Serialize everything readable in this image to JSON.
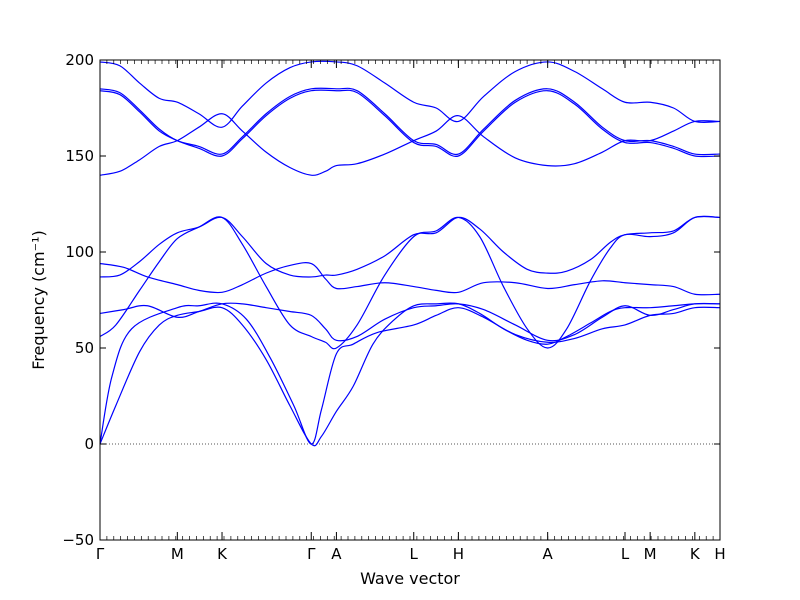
{
  "chart_data": {
    "type": "line",
    "xlabel": "Wave vector",
    "ylabel": "Frequency (cm⁻¹)",
    "ylim": [
      -50,
      200
    ],
    "yticks": [
      -50,
      0,
      50,
      100,
      150,
      200
    ],
    "grid": false,
    "line_color": "#0000ff",
    "zero_line": {
      "y": 0,
      "style": "dotted",
      "color": "#555555"
    },
    "kpoints": [
      {
        "label": "Γ",
        "x": 0.0
      },
      {
        "label": "M",
        "x": 0.1955
      },
      {
        "label": "K",
        "x": 0.3085
      },
      {
        "label": "Γ",
        "x": 0.5341
      },
      {
        "label": "A",
        "x": 0.5977
      },
      {
        "label": "L",
        "x": 0.7932
      },
      {
        "label": "H",
        "x": 0.9061
      },
      {
        "label": "A",
        "x": 1.1318
      },
      {
        "label": "L",
        "x": 1.3273
      },
      {
        "label": "M",
        "x": 1.3909
      },
      {
        "label": "K",
        "x": 1.5039
      },
      {
        "label": "H",
        "x": 1.5675
      }
    ],
    "xlim": [
      0.0,
      1.5675
    ],
    "series": [
      {
        "points": [
          [
            0,
            0
          ],
          [
            0.04,
            20
          ],
          [
            0.1,
            48
          ],
          [
            0.15,
            62
          ],
          [
            0.1955,
            67
          ],
          [
            0.25,
            69
          ],
          [
            0.3085,
            71
          ],
          [
            0.36,
            62
          ],
          [
            0.42,
            44
          ],
          [
            0.48,
            20
          ],
          [
            0.5341,
            0
          ],
          [
            0.56,
            4
          ],
          [
            0.5977,
            17
          ],
          [
            0.64,
            30
          ],
          [
            0.69,
            52
          ],
          [
            0.74,
            64
          ],
          [
            0.7932,
            72
          ],
          [
            0.85,
            73
          ],
          [
            0.9061,
            73
          ],
          [
            0.96,
            68
          ],
          [
            1.02,
            60
          ],
          [
            1.08,
            54
          ],
          [
            1.1318,
            52
          ],
          [
            1.18,
            56
          ],
          [
            1.24,
            63
          ],
          [
            1.29,
            69
          ],
          [
            1.3273,
            71
          ],
          [
            1.3909,
            71
          ],
          [
            1.45,
            72
          ],
          [
            1.5039,
            73
          ],
          [
            1.5675,
            73
          ]
        ]
      },
      {
        "points": [
          [
            0,
            0
          ],
          [
            0.03,
            35
          ],
          [
            0.08,
            60
          ],
          [
            0.1955,
            71
          ],
          [
            0.25,
            72
          ],
          [
            0.3085,
            73
          ],
          [
            0.37,
            65
          ],
          [
            0.43,
            45
          ],
          [
            0.49,
            20
          ],
          [
            0.5341,
            0
          ],
          [
            0.56,
            18
          ],
          [
            0.5977,
            47
          ],
          [
            0.64,
            52
          ],
          [
            0.7,
            58
          ],
          [
            0.7932,
            62
          ],
          [
            0.85,
            67
          ],
          [
            0.9061,
            71
          ],
          [
            0.97,
            66
          ],
          [
            1.05,
            57
          ],
          [
            1.1318,
            53
          ],
          [
            1.2,
            55
          ],
          [
            1.27,
            60
          ],
          [
            1.3273,
            62
          ],
          [
            1.3909,
            67
          ],
          [
            1.45,
            68
          ],
          [
            1.5039,
            71
          ],
          [
            1.5675,
            71
          ]
        ]
      },
      {
        "points": [
          [
            0,
            56
          ],
          [
            0.04,
            62
          ],
          [
            0.1,
            80
          ],
          [
            0.15,
            95
          ],
          [
            0.1955,
            107
          ],
          [
            0.25,
            113
          ],
          [
            0.3085,
            118
          ],
          [
            0.36,
            104
          ],
          [
            0.42,
            82
          ],
          [
            0.48,
            62
          ],
          [
            0.5341,
            56
          ],
          [
            0.57,
            53
          ],
          [
            0.5977,
            50
          ],
          [
            0.65,
            62
          ],
          [
            0.72,
            88
          ],
          [
            0.7932,
            108
          ],
          [
            0.85,
            111
          ],
          [
            0.9061,
            118
          ],
          [
            0.96,
            108
          ],
          [
            1.02,
            82
          ],
          [
            1.08,
            60
          ],
          [
            1.1318,
            50
          ],
          [
            1.18,
            60
          ],
          [
            1.24,
            85
          ],
          [
            1.29,
            102
          ],
          [
            1.3273,
            109
          ],
          [
            1.3909,
            108
          ],
          [
            1.45,
            110
          ],
          [
            1.5039,
            118
          ],
          [
            1.5675,
            118
          ]
        ]
      },
      {
        "points": [
          [
            0,
            68
          ],
          [
            0.06,
            70
          ],
          [
            0.12,
            72
          ],
          [
            0.1955,
            66
          ],
          [
            0.25,
            69
          ],
          [
            0.3085,
            73
          ],
          [
            0.36,
            73
          ],
          [
            0.42,
            71
          ],
          [
            0.48,
            69
          ],
          [
            0.5341,
            67
          ],
          [
            0.57,
            60
          ],
          [
            0.5977,
            54
          ],
          [
            0.65,
            56
          ],
          [
            0.72,
            65
          ],
          [
            0.7932,
            71
          ],
          [
            0.85,
            72
          ],
          [
            0.9061,
            73
          ],
          [
            0.97,
            70
          ],
          [
            1.05,
            62
          ],
          [
            1.1318,
            54
          ],
          [
            1.2,
            57
          ],
          [
            1.27,
            66
          ],
          [
            1.3273,
            72
          ],
          [
            1.3909,
            67
          ],
          [
            1.45,
            70
          ],
          [
            1.5039,
            73
          ],
          [
            1.5675,
            73
          ]
        ]
      },
      {
        "points": [
          [
            0,
            87
          ],
          [
            0.05,
            88
          ],
          [
            0.1,
            95
          ],
          [
            0.15,
            104
          ],
          [
            0.1955,
            110
          ],
          [
            0.25,
            113
          ],
          [
            0.3085,
            118
          ],
          [
            0.36,
            108
          ],
          [
            0.42,
            94
          ],
          [
            0.48,
            88
          ],
          [
            0.5341,
            87
          ],
          [
            0.57,
            88
          ],
          [
            0.5977,
            88
          ],
          [
            0.65,
            91
          ],
          [
            0.72,
            98
          ],
          [
            0.7932,
            109
          ],
          [
            0.85,
            110
          ],
          [
            0.9061,
            118
          ],
          [
            0.96,
            112
          ],
          [
            1.02,
            100
          ],
          [
            1.08,
            91
          ],
          [
            1.1318,
            89
          ],
          [
            1.18,
            90
          ],
          [
            1.24,
            96
          ],
          [
            1.29,
            105
          ],
          [
            1.3273,
            109
          ],
          [
            1.3909,
            110
          ],
          [
            1.45,
            111
          ],
          [
            1.5039,
            118
          ],
          [
            1.5675,
            118
          ]
        ]
      },
      {
        "points": [
          [
            0,
            94
          ],
          [
            0.06,
            92
          ],
          [
            0.12,
            87
          ],
          [
            0.1955,
            83
          ],
          [
            0.25,
            80
          ],
          [
            0.3085,
            79
          ],
          [
            0.36,
            83
          ],
          [
            0.42,
            89
          ],
          [
            0.48,
            93
          ],
          [
            0.5341,
            94
          ],
          [
            0.57,
            86
          ],
          [
            0.5977,
            81
          ],
          [
            0.65,
            82
          ],
          [
            0.72,
            84
          ],
          [
            0.7932,
            82
          ],
          [
            0.85,
            80
          ],
          [
            0.9061,
            79
          ],
          [
            0.97,
            84
          ],
          [
            1.05,
            84
          ],
          [
            1.1318,
            81
          ],
          [
            1.2,
            83
          ],
          [
            1.27,
            85
          ],
          [
            1.3273,
            84
          ],
          [
            1.3909,
            83
          ],
          [
            1.45,
            82
          ],
          [
            1.5039,
            78
          ],
          [
            1.5675,
            78
          ]
        ]
      },
      {
        "points": [
          [
            0,
            140
          ],
          [
            0.05,
            142
          ],
          [
            0.1,
            148
          ],
          [
            0.15,
            155
          ],
          [
            0.1955,
            158
          ],
          [
            0.25,
            165
          ],
          [
            0.3085,
            172
          ],
          [
            0.36,
            163
          ],
          [
            0.42,
            152
          ],
          [
            0.48,
            144
          ],
          [
            0.5341,
            140
          ],
          [
            0.57,
            142
          ],
          [
            0.5977,
            145
          ],
          [
            0.65,
            146
          ],
          [
            0.72,
            151
          ],
          [
            0.7932,
            158
          ],
          [
            0.85,
            163
          ],
          [
            0.9061,
            171
          ],
          [
            0.97,
            160
          ],
          [
            1.05,
            149
          ],
          [
            1.1318,
            145
          ],
          [
            1.2,
            146
          ],
          [
            1.27,
            152
          ],
          [
            1.3273,
            158
          ],
          [
            1.3909,
            158
          ],
          [
            1.45,
            163
          ],
          [
            1.5039,
            168
          ],
          [
            1.5675,
            168
          ]
        ]
      },
      {
        "points": [
          [
            0,
            185
          ],
          [
            0.05,
            183
          ],
          [
            0.1,
            174
          ],
          [
            0.15,
            164
          ],
          [
            0.1955,
            158
          ],
          [
            0.25,
            155
          ],
          [
            0.3085,
            151
          ],
          [
            0.36,
            160
          ],
          [
            0.42,
            172
          ],
          [
            0.48,
            181
          ],
          [
            0.5341,
            185
          ],
          [
            0.5977,
            185
          ],
          [
            0.65,
            184
          ],
          [
            0.72,
            172
          ],
          [
            0.7932,
            158
          ],
          [
            0.85,
            156
          ],
          [
            0.9061,
            151
          ],
          [
            0.97,
            164
          ],
          [
            1.05,
            179
          ],
          [
            1.1318,
            185
          ],
          [
            1.2,
            178
          ],
          [
            1.27,
            165
          ],
          [
            1.3273,
            158
          ],
          [
            1.3909,
            158
          ],
          [
            1.45,
            155
          ],
          [
            1.5039,
            151
          ],
          [
            1.5675,
            151
          ]
        ]
      },
      {
        "points": [
          [
            0,
            184
          ],
          [
            0.05,
            182
          ],
          [
            0.1,
            173
          ],
          [
            0.15,
            163
          ],
          [
            0.1955,
            158
          ],
          [
            0.25,
            154
          ],
          [
            0.3085,
            150
          ],
          [
            0.36,
            159
          ],
          [
            0.42,
            171
          ],
          [
            0.48,
            180
          ],
          [
            0.5341,
            184
          ],
          [
            0.5977,
            184
          ],
          [
            0.65,
            183
          ],
          [
            0.72,
            171
          ],
          [
            0.7932,
            157
          ],
          [
            0.85,
            155
          ],
          [
            0.9061,
            150
          ],
          [
            0.97,
            163
          ],
          [
            1.05,
            178
          ],
          [
            1.1318,
            184
          ],
          [
            1.2,
            177
          ],
          [
            1.27,
            164
          ],
          [
            1.3273,
            157
          ],
          [
            1.3909,
            157
          ],
          [
            1.45,
            154
          ],
          [
            1.5039,
            150
          ],
          [
            1.5675,
            150
          ]
        ]
      },
      {
        "points": [
          [
            0,
            199
          ],
          [
            0.05,
            197
          ],
          [
            0.1,
            188
          ],
          [
            0.15,
            180
          ],
          [
            0.1955,
            178
          ],
          [
            0.25,
            172
          ],
          [
            0.3085,
            165
          ],
          [
            0.36,
            176
          ],
          [
            0.42,
            188
          ],
          [
            0.48,
            196
          ],
          [
            0.5341,
            199
          ],
          [
            0.5977,
            199
          ],
          [
            0.65,
            197
          ],
          [
            0.72,
            188
          ],
          [
            0.7932,
            178
          ],
          [
            0.85,
            175
          ],
          [
            0.9061,
            168
          ],
          [
            0.97,
            181
          ],
          [
            1.05,
            194
          ],
          [
            1.1318,
            199
          ],
          [
            1.2,
            194
          ],
          [
            1.27,
            185
          ],
          [
            1.3273,
            178
          ],
          [
            1.3909,
            178
          ],
          [
            1.45,
            175
          ],
          [
            1.5039,
            168
          ],
          [
            1.5675,
            168
          ]
        ]
      }
    ]
  }
}
